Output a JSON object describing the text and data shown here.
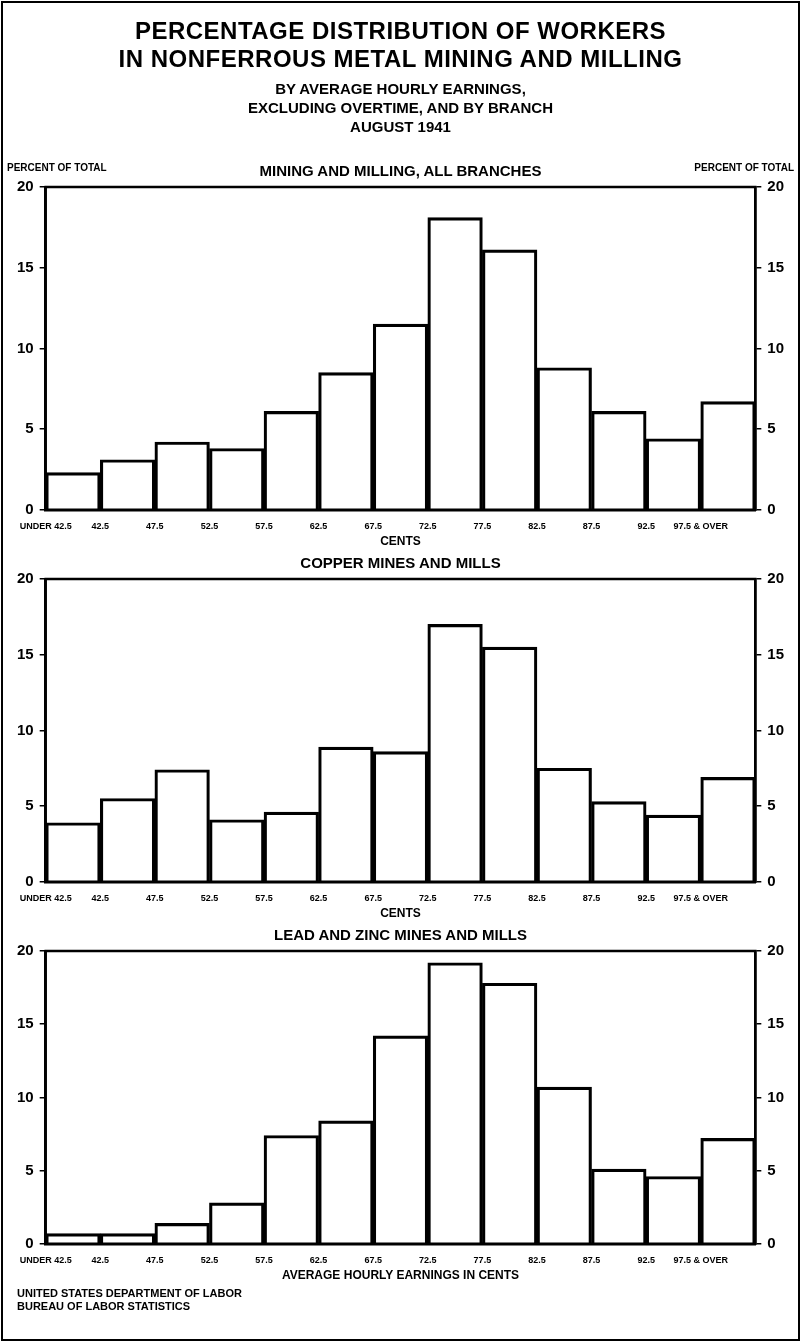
{
  "chart_data": [
    {
      "type": "other",
      "title": "PERCENTAGE DISTRIBUTION OF WORKERS\nIN NONFERROUS METAL MINING AND MILLING",
      "subtitle": "BY AVERAGE HOURLY EARNINGS,\nEXCLUDING OVERTIME, AND BY BRANCH\nAUGUST 1941"
    },
    {
      "type": "bar",
      "title": "MINING AND MILLING, ALL BRANCHES",
      "xlabel": "CENTS",
      "ylabel": "PERCENT OF TOTAL",
      "y2label": "PERCENT OF TOTAL",
      "categories": [
        "UNDER 42.5",
        "42.5",
        "47.5",
        "52.5",
        "57.5",
        "62.5",
        "67.5",
        "72.5",
        "77.5",
        "82.5",
        "87.5",
        "92.5",
        "97.5 & OVER"
      ],
      "values": [
        2.3,
        3.1,
        4.2,
        3.8,
        6.1,
        8.5,
        11.5,
        18.1,
        16.1,
        8.8,
        6.1,
        4.4,
        6.7
      ],
      "color": "#000000",
      "ylim": [
        0,
        20
      ],
      "yticks": [
        0,
        5,
        10,
        15,
        20
      ],
      "y2lim": [
        0,
        20
      ],
      "y2ticks": [
        0,
        5,
        10,
        15,
        20
      ]
    },
    {
      "type": "bar",
      "title": "COPPER MINES AND MILLS",
      "xlabel": "CENTS",
      "categories": [
        "UNDER 42.5",
        "42.5",
        "47.5",
        "52.5",
        "57.5",
        "62.5",
        "67.5",
        "72.5",
        "77.5",
        "82.5",
        "87.5",
        "92.5",
        "97.5 & OVER"
      ],
      "values": [
        3.9,
        5.5,
        7.4,
        4.1,
        4.6,
        8.9,
        8.6,
        17.0,
        15.5,
        7.5,
        5.3,
        4.4,
        6.9
      ],
      "color": "#000000",
      "ylim": [
        0,
        20
      ],
      "yticks": [
        0,
        5,
        10,
        15,
        20
      ],
      "y2lim": [
        0,
        20
      ],
      "y2ticks": [
        0,
        5,
        10,
        15,
        20
      ]
    },
    {
      "type": "bar",
      "title": "LEAD AND ZINC MINES AND MILLS",
      "xlabel": "AVERAGE HOURLY EARNINGS IN CENTS",
      "categories": [
        "UNDER 42.5",
        "42.5",
        "47.5",
        "52.5",
        "57.5",
        "62.5",
        "67.5",
        "72.5",
        "77.5",
        "82.5",
        "87.5",
        "92.5",
        "97.5 & OVER"
      ],
      "values": [
        0.7,
        0.7,
        1.4,
        2.8,
        7.4,
        8.4,
        14.2,
        19.2,
        17.8,
        10.7,
        5.1,
        4.6,
        7.2
      ],
      "color": "#000000",
      "ylim": [
        0,
        20
      ],
      "yticks": [
        0,
        5,
        10,
        15,
        20
      ],
      "y2lim": [
        0,
        20
      ],
      "y2ticks": [
        0,
        5,
        10,
        15,
        20
      ],
      "annotations": [
        "UNITED STATES DEPARTMENT OF LABOR",
        "BUREAU OF LABOR STATISTICS"
      ]
    }
  ]
}
